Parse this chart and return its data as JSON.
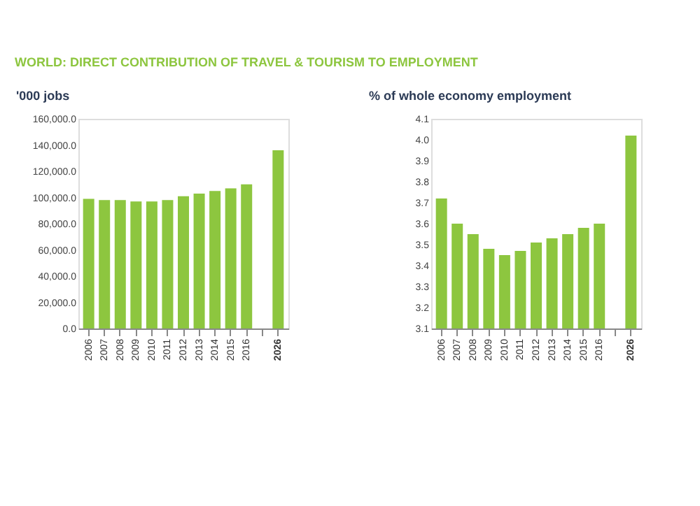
{
  "chart_data": [
    {
      "type": "bar",
      "title": "WORLD: DIRECT CONTRIBUTION OF  TRAVEL & TOURISM TO EMPLOYMENT",
      "ylabel": "'000 jobs",
      "categories": [
        "2006",
        "2007",
        "2008",
        "2009",
        "2010",
        "2011",
        "2012",
        "2013",
        "2014",
        "2015",
        "2016",
        null,
        "2026"
      ],
      "values": [
        99000,
        98000,
        98000,
        97000,
        97000,
        98000,
        101000,
        103000,
        105000,
        107000,
        110000,
        null,
        136000
      ],
      "color": "#8dc63f",
      "ylim": [
        0,
        160000
      ],
      "yticks": [
        {
          "value": 0,
          "label": "0.0"
        },
        {
          "value": 20000,
          "label": "20,000.0"
        },
        {
          "value": 40000,
          "label": "40,000.0"
        },
        {
          "value": 60000,
          "label": "60,000.0"
        },
        {
          "value": 80000,
          "label": "80,000.0"
        },
        {
          "value": 100000,
          "label": "100,000.0"
        },
        {
          "value": 120000,
          "label": "120,000.0"
        },
        {
          "value": 140000,
          "label": "140,000.0"
        },
        {
          "value": 160000,
          "label": "160,000.0"
        }
      ],
      "grid": false
    },
    {
      "type": "bar",
      "ylabel": "% of whole economy employment",
      "categories": [
        "2006",
        "2007",
        "2008",
        "2009",
        "2010",
        "2011",
        "2012",
        "2013",
        "2014",
        "2015",
        "2016",
        null,
        "2026"
      ],
      "values": [
        3.72,
        3.6,
        3.55,
        3.48,
        3.45,
        3.47,
        3.51,
        3.53,
        3.55,
        3.58,
        3.6,
        null,
        4.02
      ],
      "color": "#8dc63f",
      "ylim": [
        3.1,
        4.1
      ],
      "yticks": [
        {
          "value": 3.1,
          "label": "3.1"
        },
        {
          "value": 3.2,
          "label": "3.2"
        },
        {
          "value": 3.3,
          "label": "3.3"
        },
        {
          "value": 3.4,
          "label": "3.4"
        },
        {
          "value": 3.5,
          "label": "3.5"
        },
        {
          "value": 3.6,
          "label": "3.6"
        },
        {
          "value": 3.7,
          "label": "3.7"
        },
        {
          "value": 3.8,
          "label": "3.8"
        },
        {
          "value": 3.9,
          "label": "3.9"
        },
        {
          "value": 4.0,
          "label": "4.0"
        },
        {
          "value": 4.1,
          "label": "4.1"
        }
      ],
      "grid": false
    }
  ]
}
